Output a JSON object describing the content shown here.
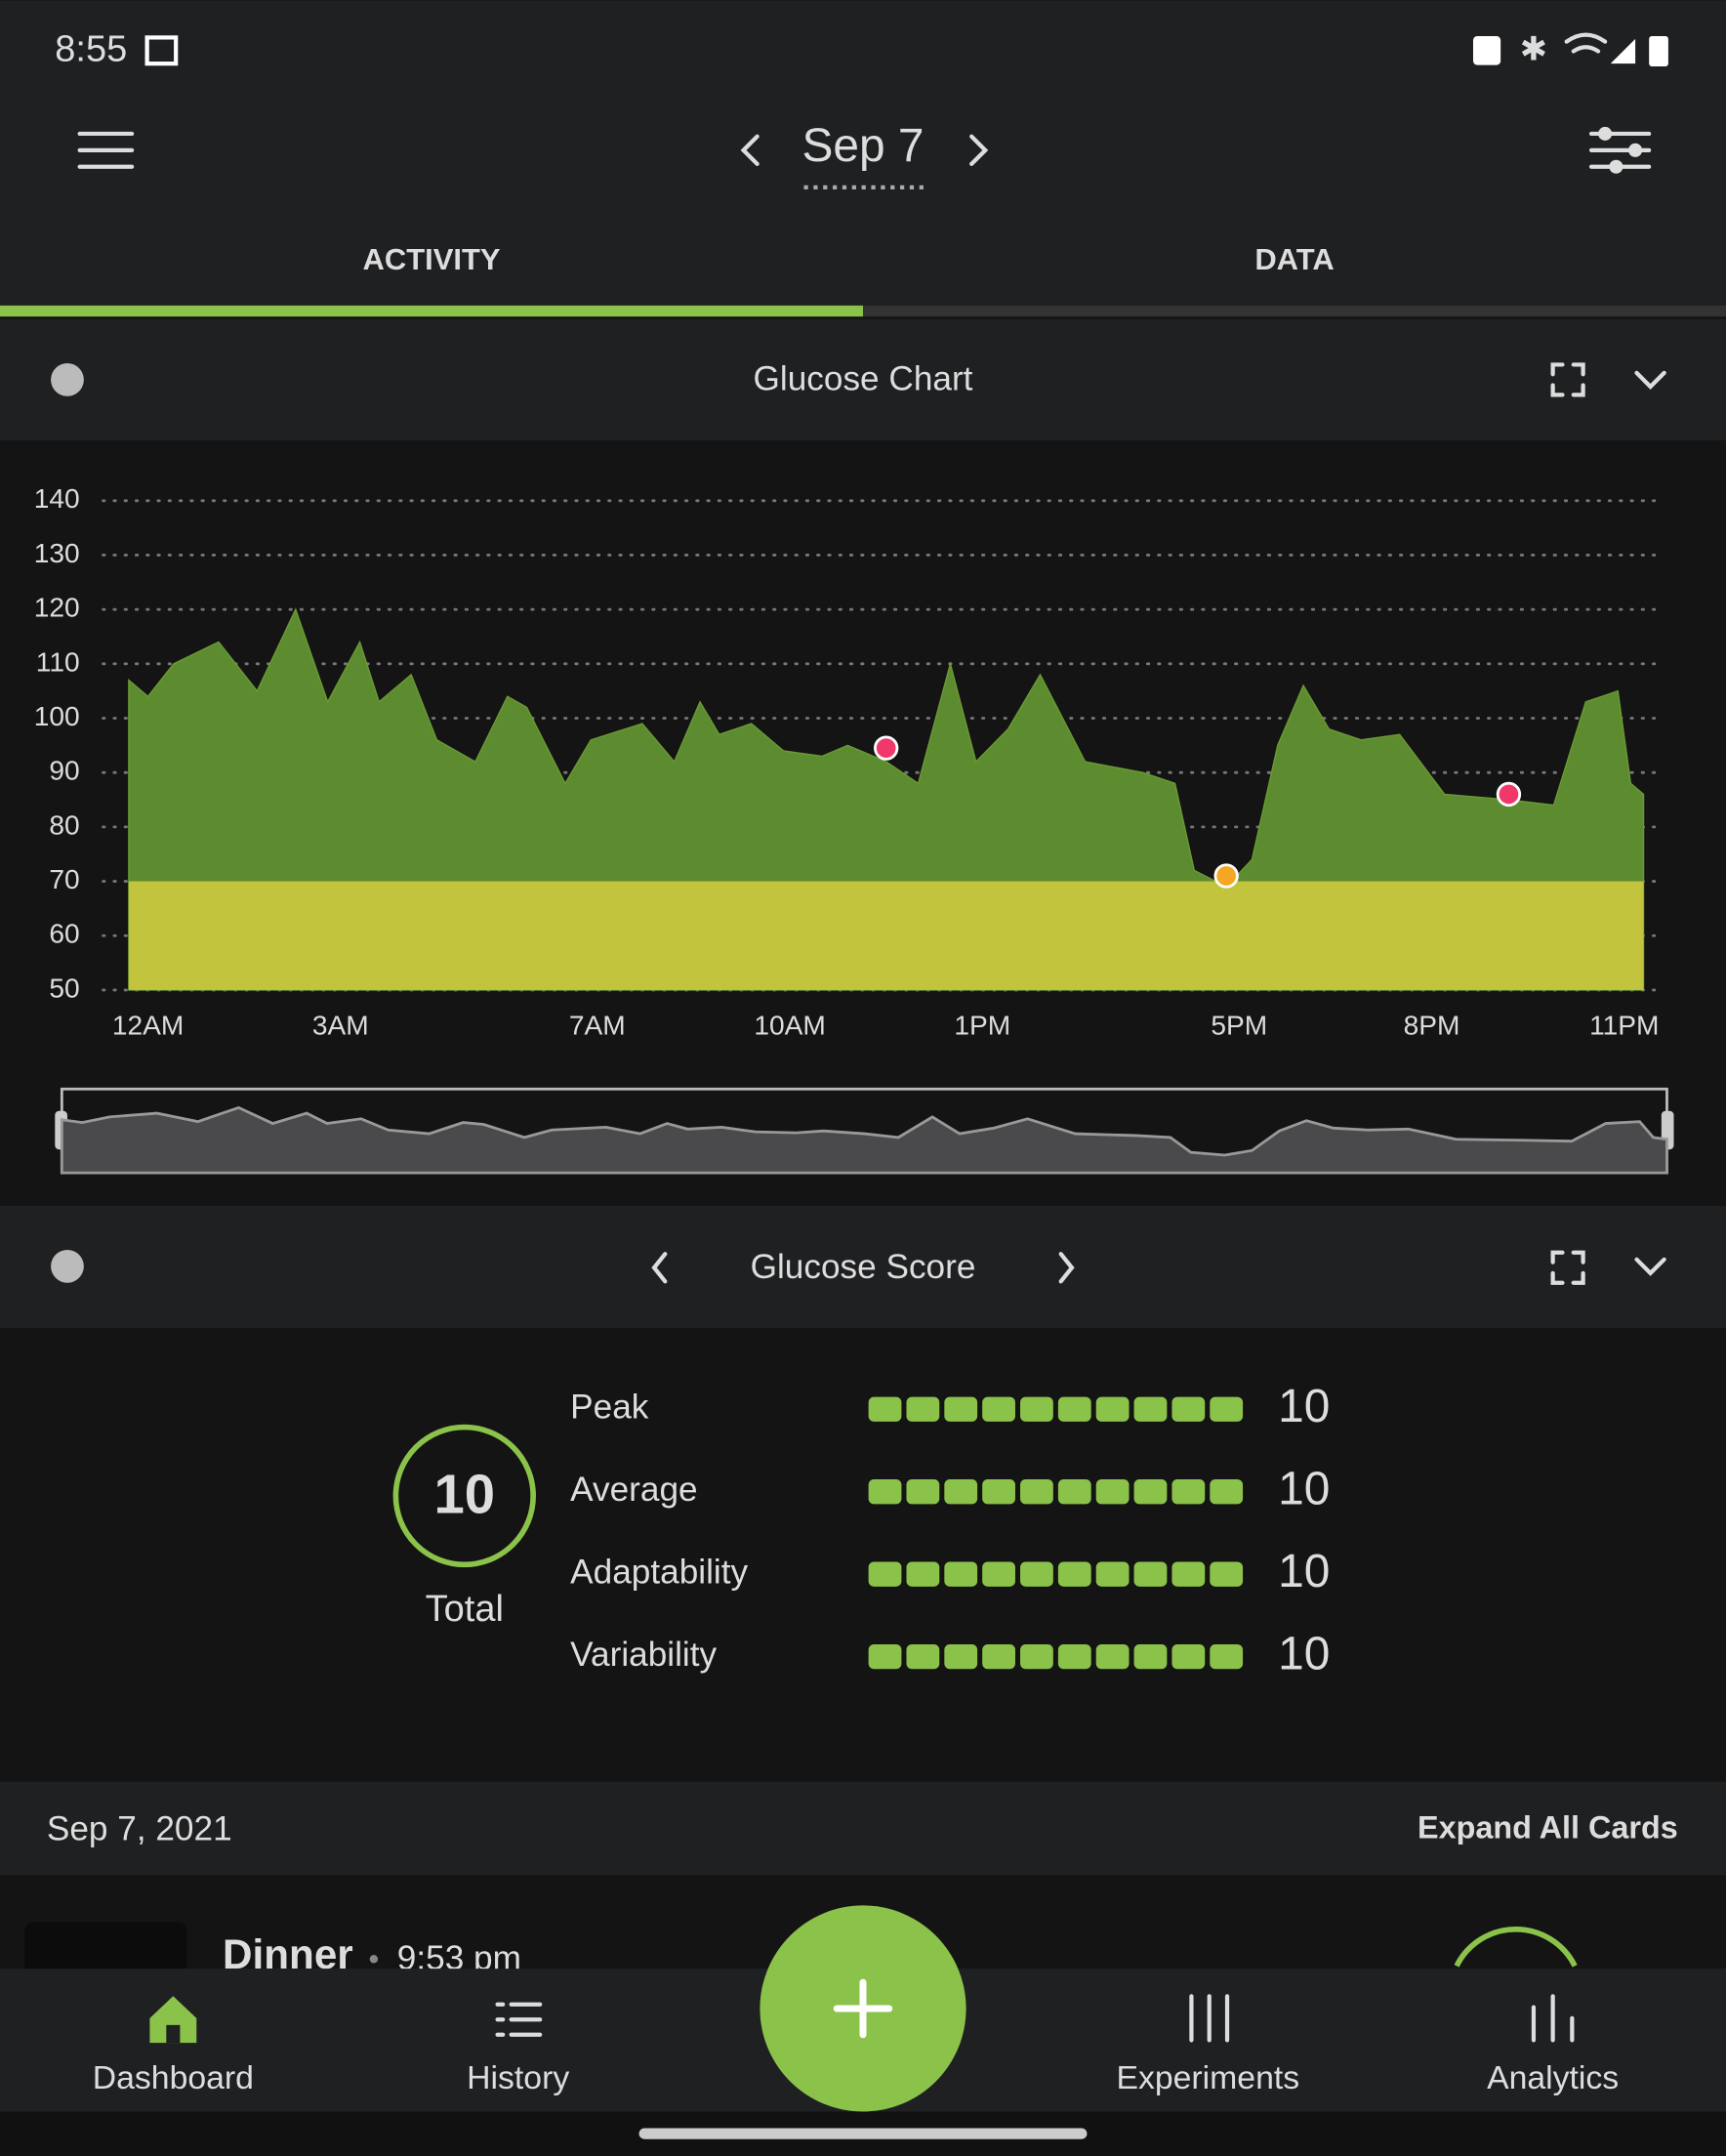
{
  "status_bar": {
    "time": "8:55"
  },
  "header": {
    "date": "Sep 7"
  },
  "tabs": [
    "ACTIVITY",
    "DATA"
  ],
  "glucose_card": {
    "title": "Glucose Chart"
  },
  "chart_data": {
    "type": "area",
    "x": [
      -0.3,
      0.0,
      0.4,
      1.1,
      1.7,
      2.3,
      2.8,
      3.3,
      3.6,
      4.1,
      4.5,
      5.1,
      5.6,
      5.9,
      6.5,
      6.9,
      7.7,
      8.2,
      8.6,
      8.9,
      9.4,
      9.9,
      10.5,
      10.9,
      11.5,
      12.0,
      12.5,
      12.9,
      13.4,
      13.9,
      14.6,
      15.5,
      16.0,
      16.3,
      16.8,
      17.2,
      17.6,
      18.0,
      18.4,
      18.9,
      19.5,
      20.2,
      21.2,
      21.9,
      22.4,
      22.9,
      23.1,
      23.3
    ],
    "series": [
      {
        "color": "#5d8b2f",
        "values": [
          107,
          104,
          110,
          114,
          105,
          120,
          103,
          114,
          103,
          108,
          96,
          92,
          104,
          102,
          88,
          96,
          99,
          92,
          103,
          97,
          99,
          94,
          93,
          95,
          92,
          88,
          110,
          92,
          98,
          108,
          92,
          90,
          88,
          72,
          69,
          74,
          95,
          106,
          98,
          96,
          97,
          86,
          85,
          84,
          103,
          105,
          88,
          86
        ]
      }
    ],
    "low_band": {
      "top": 70,
      "color": "#c1c43c"
    },
    "markers": [
      {
        "x": 11.5,
        "value": 94.5,
        "color": "#f0386b"
      },
      {
        "x": 16.8,
        "value": 71,
        "color": "#f5a623"
      },
      {
        "x": 21.2,
        "value": 86,
        "color": "#f0386b"
      }
    ],
    "xlim": [
      -0.7,
      23.6
    ],
    "xticks": [
      {
        "value": 0,
        "label": "12AM"
      },
      {
        "value": 3,
        "label": "3AM"
      },
      {
        "value": 7,
        "label": "7AM"
      },
      {
        "value": 10,
        "label": "10AM"
      },
      {
        "value": 13,
        "label": "1PM"
      },
      {
        "value": 17,
        "label": "5PM"
      },
      {
        "value": 20,
        "label": "8PM"
      },
      {
        "value": 23,
        "label": "11PM"
      }
    ],
    "ylim": [
      50,
      140
    ],
    "yticks": [
      50,
      60,
      70,
      80,
      90,
      100,
      110,
      120,
      130,
      140
    ],
    "grid": true
  },
  "score": {
    "title": "Glucose Score",
    "total": 10,
    "total_label": "Total",
    "rows": [
      {
        "name": "Peak",
        "value": 10
      },
      {
        "name": "Average",
        "value": 10
      },
      {
        "name": "Adaptability",
        "value": 10
      },
      {
        "name": "Variability",
        "value": 10
      }
    ]
  },
  "timeline": {
    "date": "Sep 7, 2021",
    "expand": "Expand All Cards",
    "entry": {
      "title": "Dinner",
      "time": "9:53 pm"
    }
  },
  "nav": [
    "Dashboard",
    "History",
    "Experiments",
    "Analytics"
  ]
}
